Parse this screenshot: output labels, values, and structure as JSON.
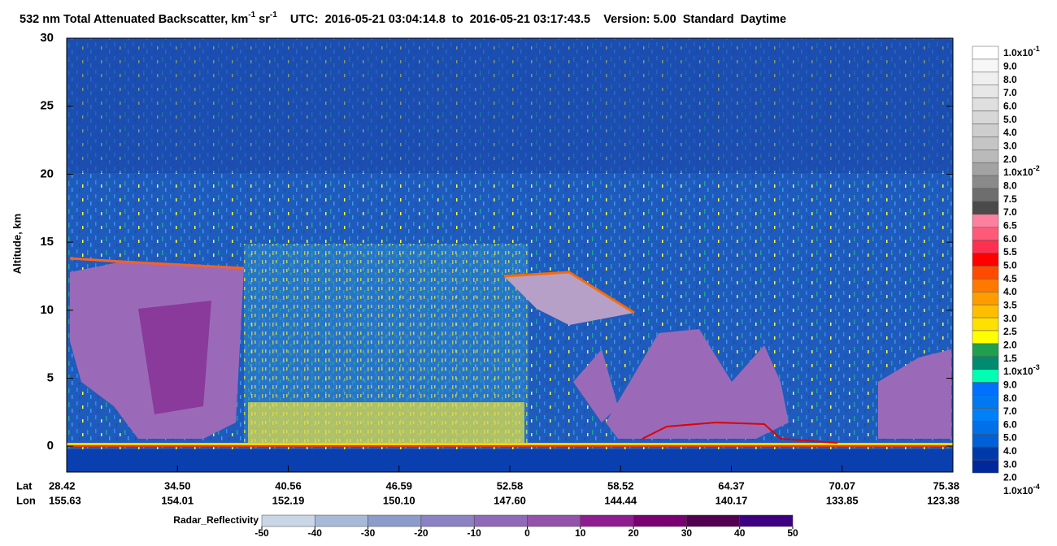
{
  "chart_data": {
    "type": "curtain",
    "title": {
      "main": "532 nm Total Attenuated Backscatter, km",
      "exp1": "-1",
      "unit2": " sr",
      "exp2": "-1",
      "info": "    UTC:  2016-05-21 03:04:14.8  to  2016-05-21 03:17:43.5    Version: 5.00  Standard  Daytime"
    },
    "ylabel": "Altitude, km",
    "ylim": [
      -1.9,
      30
    ],
    "yticks": [
      0,
      5,
      10,
      15,
      20,
      25,
      30
    ],
    "x_row_labels": [
      "Lat",
      "Lon"
    ],
    "lat": [
      "28.42",
      "34.50",
      "40.56",
      "46.59",
      "52.58",
      "58.52",
      "64.37",
      "70.07",
      "75.38"
    ],
    "lon": [
      "155.63",
      "154.01",
      "152.19",
      "150.10",
      "147.60",
      "144.44",
      "140.17",
      "133.85",
      "123.38"
    ],
    "colorbar": {
      "labels": [
        {
          "text": "1.0x10",
          "sup": "-1"
        },
        "9.0",
        "8.0",
        "7.0",
        "6.0",
        "5.0",
        "4.0",
        "3.0",
        "2.0",
        {
          "text": "1.0x10",
          "sup": "-2"
        },
        "8.0",
        "7.5",
        "7.0",
        "6.5",
        "6.0",
        "5.5",
        "5.0",
        "4.5",
        "4.0",
        "3.5",
        "3.0",
        "2.5",
        "2.0",
        "1.5",
        {
          "text": "1.0x10",
          "sup": "-3"
        },
        "9.0",
        "8.0",
        "7.0",
        "6.0",
        "5.0",
        "4.0",
        "3.0",
        "2.0",
        {
          "text": "1.0x10",
          "sup": "-4"
        }
      ],
      "colors": [
        "#ffffff",
        "#f7f7f7",
        "#efefef",
        "#e7e7e7",
        "#dfdfdf",
        "#d7d7d7",
        "#cecece",
        "#c5c5c5",
        "#bababa",
        "#a3a3a3",
        "#8a8a8a",
        "#6e6e6e",
        "#4a4a4a",
        "#ff7f9f",
        "#ff5a7a",
        "#ff2f50",
        "#ff0000",
        "#ff4a00",
        "#ff7800",
        "#ff9c00",
        "#ffbf00",
        "#ffe000",
        "#ffff00",
        "#1f9f4f",
        "#008a70",
        "#00ffb0",
        "#0070ff",
        "#0078f0",
        "#0080f8",
        "#0070e8",
        "#0060d8",
        "#003aa8",
        "#00289a"
      ]
    },
    "radar": {
      "label": "Radar_Reflectivity",
      "ticks": [
        -50,
        -40,
        -30,
        -20,
        -10,
        0,
        10,
        20,
        30,
        40,
        50
      ],
      "colors": [
        "#c8d6e6",
        "#a6bad8",
        "#8b9ccb",
        "#8a82c2",
        "#8e6ab8",
        "#9452aa",
        "#8f1d90",
        "#7a0072",
        "#520050",
        "#3c0080"
      ]
    }
  }
}
